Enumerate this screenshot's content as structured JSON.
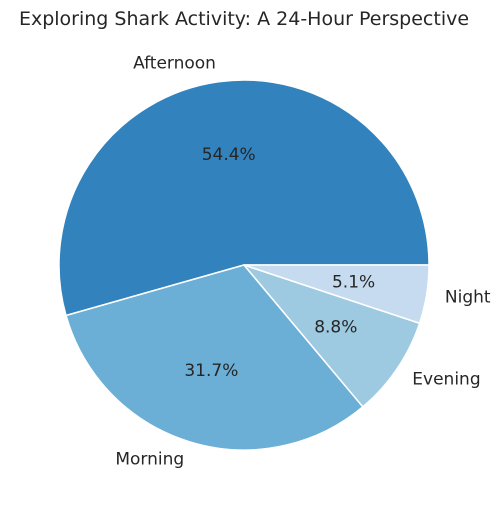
{
  "chart_data": {
    "type": "pie",
    "title": "Exploring Shark Activity: A 24-Hour Perspective",
    "categories": [
      "Afternoon",
      "Morning",
      "Evening",
      "Night"
    ],
    "values": [
      54.4,
      31.7,
      8.8,
      5.1
    ],
    "percent_labels": [
      "54.4%",
      "31.7%",
      "8.8%",
      "5.1%"
    ],
    "colors": [
      "#3182bd",
      "#6baed6",
      "#9ecae1",
      "#c6dbef"
    ],
    "start_angle_deg": 0,
    "direction": "counterclockwise"
  }
}
